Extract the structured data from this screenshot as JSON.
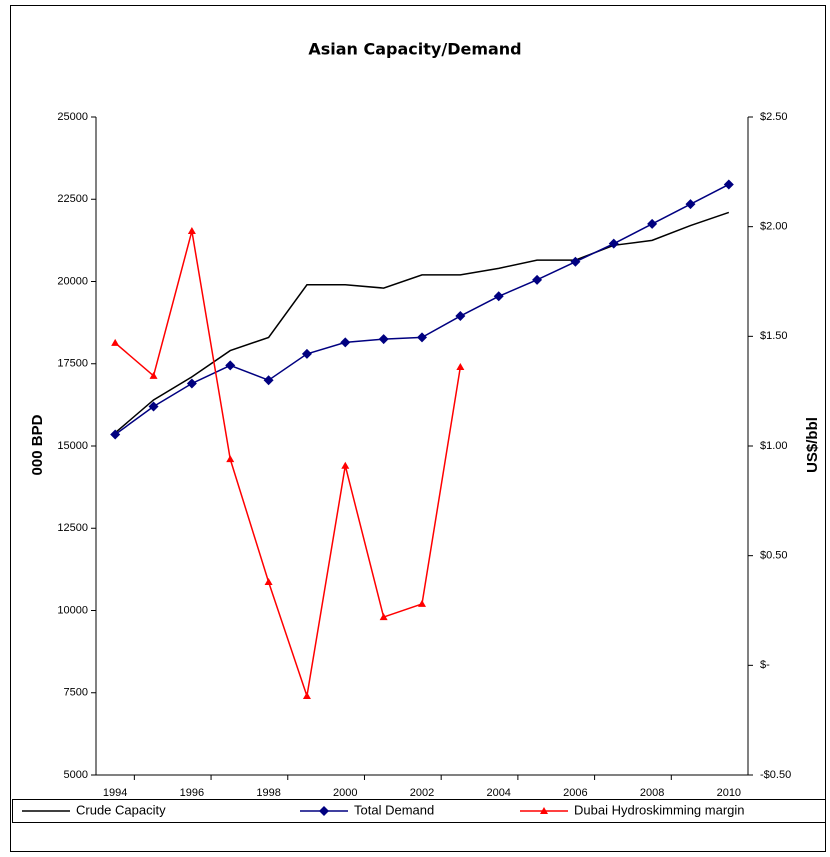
{
  "chart_data": {
    "type": "line",
    "title": "Asian Capacity/Demand",
    "y_label": "000 BPD",
    "y2_label": "US$/bbl",
    "categories": [
      "1994",
      null,
      "1996",
      null,
      "1998",
      null,
      "2000",
      null,
      "2002",
      null,
      "2004",
      null,
      "2006",
      null,
      "2008",
      null,
      "2010"
    ],
    "ylim": [
      5000,
      25000
    ],
    "yticks": [
      5000,
      7500,
      10000,
      12500,
      15000,
      17500,
      20000,
      22500,
      25000
    ],
    "y2lim": [
      -0.5,
      2.5
    ],
    "y2ticks": [
      {
        "value": -0.5,
        "label": "-$0.50"
      },
      {
        "value": 0,
        "label": "$-"
      },
      {
        "value": 0.5,
        "label": "$0.50"
      },
      {
        "value": 1,
        "label": "$1.00"
      },
      {
        "value": 1.5,
        "label": "$1.50"
      },
      {
        "value": 2,
        "label": "$2.00"
      },
      {
        "value": 2.5,
        "label": "$2.50"
      }
    ],
    "series": [
      {
        "name": "Crude Capacity",
        "color": "#000000",
        "marker": null,
        "values": [
          15400,
          16400,
          17100,
          17900,
          18300,
          19900,
          19900,
          19800,
          20200,
          20200,
          20400,
          20650,
          20650,
          21100,
          21250,
          21700,
          22100
        ]
      },
      {
        "name": "Total Demand",
        "color": "#000080",
        "marker": "diamond",
        "values": [
          15350,
          16200,
          16900,
          17450,
          17000,
          17800,
          18150,
          18250,
          18300,
          18950,
          19550,
          20050,
          20600,
          21150,
          21750,
          22350,
          22950
        ]
      },
      {
        "name": "Dubai Hydroskimming margin",
        "color": "#ff0000",
        "marker": "triangle",
        "axis": "y2",
        "values": [
          1.47,
          1.32,
          1.98,
          0.94,
          0.38,
          -0.14,
          0.91,
          0.22,
          0.28,
          1.36,
          null,
          null,
          null,
          null,
          null,
          null,
          null
        ]
      }
    ]
  }
}
